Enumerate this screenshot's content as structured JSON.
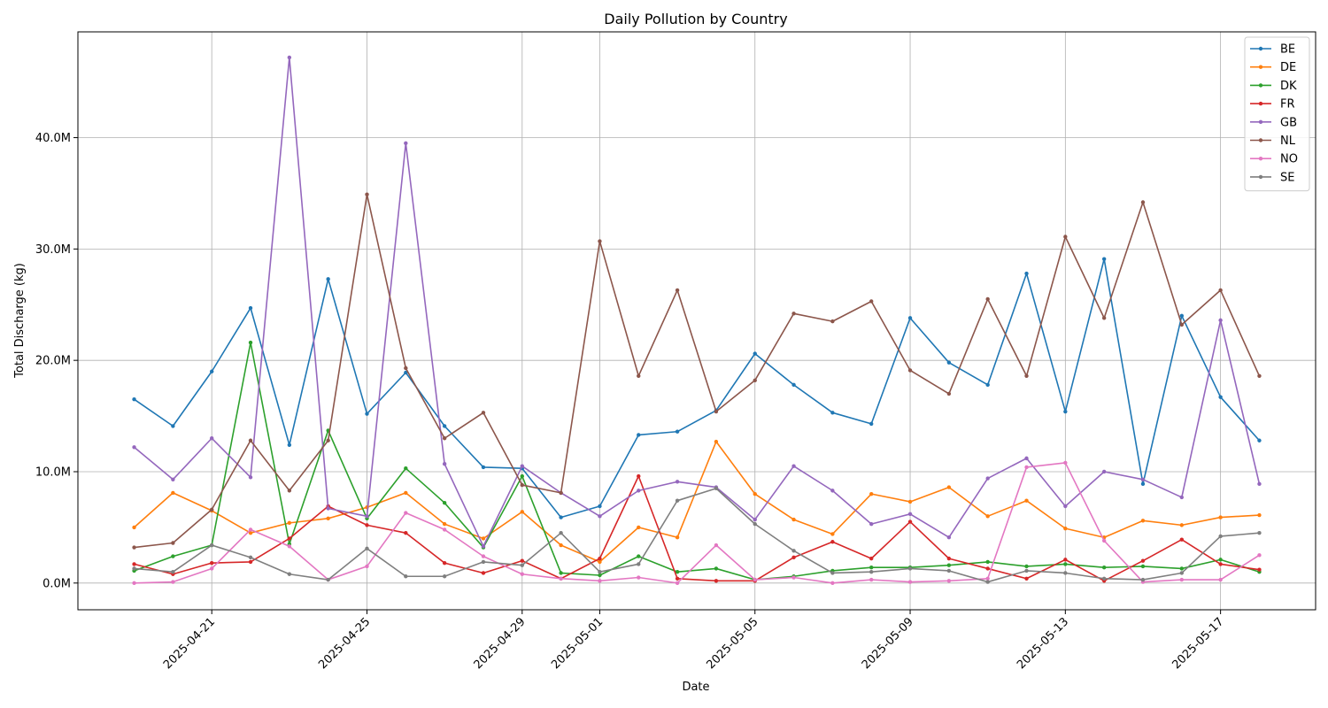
{
  "chart_data": {
    "type": "line",
    "title": "Daily Pollution by Country",
    "xlabel": "Date",
    "ylabel": "Total Discharge (kg)",
    "x": [
      "2025-04-19",
      "2025-04-20",
      "2025-04-21",
      "2025-04-22",
      "2025-04-23",
      "2025-04-24",
      "2025-04-25",
      "2025-04-26",
      "2025-04-27",
      "2025-04-28",
      "2025-04-29",
      "2025-04-30",
      "2025-05-01",
      "2025-05-02",
      "2025-05-03",
      "2025-05-04",
      "2025-05-05",
      "2025-05-06",
      "2025-05-07",
      "2025-05-08",
      "2025-05-09",
      "2025-05-10",
      "2025-05-11",
      "2025-05-12",
      "2025-05-13",
      "2025-05-14",
      "2025-05-15",
      "2025-05-16",
      "2025-05-17",
      "2025-05-18"
    ],
    "x_ticks": [
      "2025-04-21",
      "2025-04-25",
      "2025-04-29",
      "2025-05-01",
      "2025-05-05",
      "2025-05-09",
      "2025-05-13",
      "2025-05-17"
    ],
    "y_ticks": [
      0,
      10000000,
      20000000,
      30000000,
      40000000
    ],
    "y_tick_labels": [
      "0.0M",
      "10.0M",
      "20.0M",
      "30.0M",
      "40.0M"
    ],
    "ylim": [
      -2400000,
      49500000
    ],
    "grid": true,
    "legend_position": "top-right",
    "series": [
      {
        "name": "BE",
        "color": "#1f77b4",
        "values": [
          16.5,
          14.1,
          19.0,
          24.7,
          12.4,
          27.3,
          15.2,
          18.9,
          14.1,
          10.4,
          10.3,
          5.9,
          6.9,
          13.3,
          13.6,
          15.5,
          20.6,
          17.8,
          15.3,
          14.3,
          23.8,
          19.8,
          17.8,
          27.8,
          15.4,
          29.1,
          8.9,
          24.0,
          16.7,
          12.8
        ]
      },
      {
        "name": "DE",
        "color": "#ff7f0e",
        "values": [
          5.0,
          8.1,
          6.5,
          4.5,
          5.4,
          5.8,
          6.8,
          8.1,
          5.3,
          4.0,
          6.4,
          3.4,
          1.9,
          5.0,
          4.1,
          12.7,
          8.0,
          5.7,
          4.4,
          8.0,
          7.3,
          8.6,
          6.0,
          7.4,
          4.9,
          4.1,
          5.6,
          5.2,
          5.9,
          6.1
        ]
      },
      {
        "name": "DK",
        "color": "#2ca02c",
        "values": [
          1.1,
          2.4,
          3.4,
          21.6,
          3.5,
          13.7,
          5.8,
          10.3,
          7.2,
          3.2,
          9.6,
          0.9,
          0.7,
          2.4,
          1.0,
          1.3,
          0.3,
          0.6,
          1.1,
          1.4,
          1.4,
          1.6,
          1.9,
          1.5,
          1.7,
          1.4,
          1.5,
          1.3,
          2.1,
          1.0
        ]
      },
      {
        "name": "FR",
        "color": "#d62728",
        "values": [
          1.7,
          0.8,
          1.8,
          1.9,
          4.0,
          6.9,
          5.2,
          4.5,
          1.8,
          0.9,
          2.0,
          0.4,
          2.2,
          9.6,
          0.4,
          0.2,
          0.2,
          2.3,
          3.7,
          2.2,
          5.5,
          2.2,
          1.3,
          0.4,
          2.1,
          0.2,
          2.0,
          3.9,
          1.7,
          1.2
        ]
      },
      {
        "name": "GB",
        "color": "#9467bd",
        "values": [
          12.2,
          9.3,
          13.0,
          9.5,
          47.2,
          6.7,
          6.0,
          39.5,
          10.7,
          3.3,
          10.5,
          8.1,
          6.0,
          8.3,
          9.1,
          8.6,
          5.7,
          10.5,
          8.3,
          5.3,
          6.2,
          4.1,
          9.4,
          11.2,
          6.9,
          10.0,
          9.3,
          7.7,
          23.6,
          8.9
        ]
      },
      {
        "name": "NL",
        "color": "#8c564b",
        "values": [
          3.2,
          3.6,
          6.6,
          12.8,
          8.3,
          12.8,
          34.9,
          19.3,
          13.0,
          15.3,
          8.8,
          8.1,
          30.7,
          18.6,
          26.3,
          15.4,
          18.2,
          24.2,
          23.5,
          25.3,
          19.1,
          17.0,
          25.5,
          18.6,
          31.1,
          23.8,
          34.2,
          23.2,
          26.3,
          18.6
        ]
      },
      {
        "name": "NO",
        "color": "#e377c2",
        "values": [
          0.0,
          0.1,
          1.3,
          4.8,
          3.3,
          0.3,
          1.5,
          6.3,
          4.8,
          2.4,
          0.8,
          0.4,
          0.2,
          0.5,
          0.0,
          3.4,
          0.3,
          0.5,
          0.0,
          0.3,
          0.1,
          0.2,
          0.4,
          10.4,
          10.8,
          3.8,
          0.1,
          0.3,
          0.3,
          2.5
        ]
      },
      {
        "name": "SE",
        "color": "#7f7f7f",
        "values": [
          1.3,
          1.0,
          3.4,
          2.3,
          0.8,
          0.3,
          3.1,
          0.6,
          0.6,
          1.9,
          1.6,
          4.5,
          1.0,
          1.7,
          7.4,
          8.5,
          5.3,
          2.9,
          0.9,
          1.0,
          1.3,
          1.1,
          0.1,
          1.1,
          0.9,
          0.4,
          0.3,
          0.9,
          4.2,
          4.5
        ]
      }
    ]
  }
}
